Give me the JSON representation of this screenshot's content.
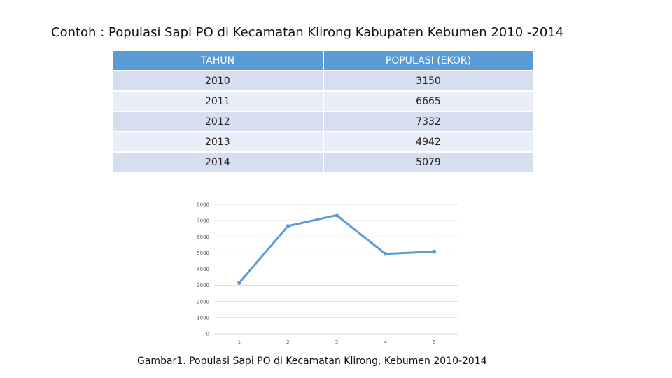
{
  "title": "Contoh : Populasi Sapi PO di Kecamatan Klirong Kabupaten Kebumen 2010 -2014",
  "table": {
    "headers": [
      "TAHUN",
      "POPULASI (EKOR)"
    ],
    "rows": [
      [
        "2010",
        "3150"
      ],
      [
        "2011",
        "6665"
      ],
      [
        "2012",
        "7332"
      ],
      [
        "2013",
        "4942"
      ],
      [
        "2014",
        "5079"
      ]
    ]
  },
  "chart_data": {
    "type": "line",
    "x": [
      1,
      2,
      3,
      4,
      5
    ],
    "series": [
      {
        "values": [
          3150,
          6665,
          7332,
          4942,
          5079
        ]
      }
    ],
    "ylim": [
      0,
      8000
    ],
    "yticks": [
      "0",
      "1000",
      "2000",
      "3000",
      "4000",
      "5000",
      "6000",
      "7000",
      "8000"
    ],
    "xticks": [
      "1",
      "2",
      "3",
      "4",
      "5"
    ],
    "grid": true,
    "line_color": "#5b9bd5",
    "grid_color": "#d9d9d9"
  },
  "caption": "Gambar1. Populasi Sapi PO di Kecamatan Klirong, Kebumen 2010-2014"
}
